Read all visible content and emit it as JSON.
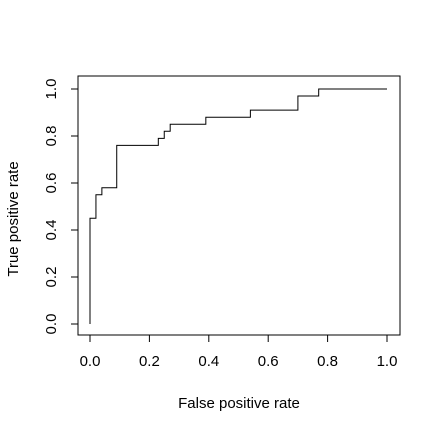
{
  "chart_data": {
    "type": "line",
    "title": "",
    "xlabel": "False positive rate",
    "ylabel": "True positive rate",
    "xlim": [
      0.0,
      1.0
    ],
    "ylim": [
      0.0,
      1.0
    ],
    "x_ticks": [
      "0.0",
      "0.2",
      "0.4",
      "0.6",
      "0.8",
      "1.0"
    ],
    "y_ticks": [
      "0.0",
      "0.2",
      "0.4",
      "0.6",
      "0.8",
      "1.0"
    ],
    "grid": false,
    "legend": "none",
    "line_color": "#000000",
    "series": [
      {
        "points": [
          [
            0.0,
            0.0
          ],
          [
            0.0,
            0.45
          ],
          [
            0.02,
            0.45
          ],
          [
            0.02,
            0.55
          ],
          [
            0.04,
            0.55
          ],
          [
            0.04,
            0.58
          ],
          [
            0.09,
            0.58
          ],
          [
            0.09,
            0.76
          ],
          [
            0.23,
            0.76
          ],
          [
            0.23,
            0.79
          ],
          [
            0.25,
            0.79
          ],
          [
            0.25,
            0.82
          ],
          [
            0.27,
            0.82
          ],
          [
            0.27,
            0.85
          ],
          [
            0.39,
            0.85
          ],
          [
            0.39,
            0.88
          ],
          [
            0.54,
            0.88
          ],
          [
            0.54,
            0.91
          ],
          [
            0.7,
            0.91
          ],
          [
            0.7,
            0.97
          ],
          [
            0.77,
            0.97
          ],
          [
            0.77,
            1.0
          ],
          [
            1.0,
            1.0
          ]
        ]
      }
    ]
  }
}
